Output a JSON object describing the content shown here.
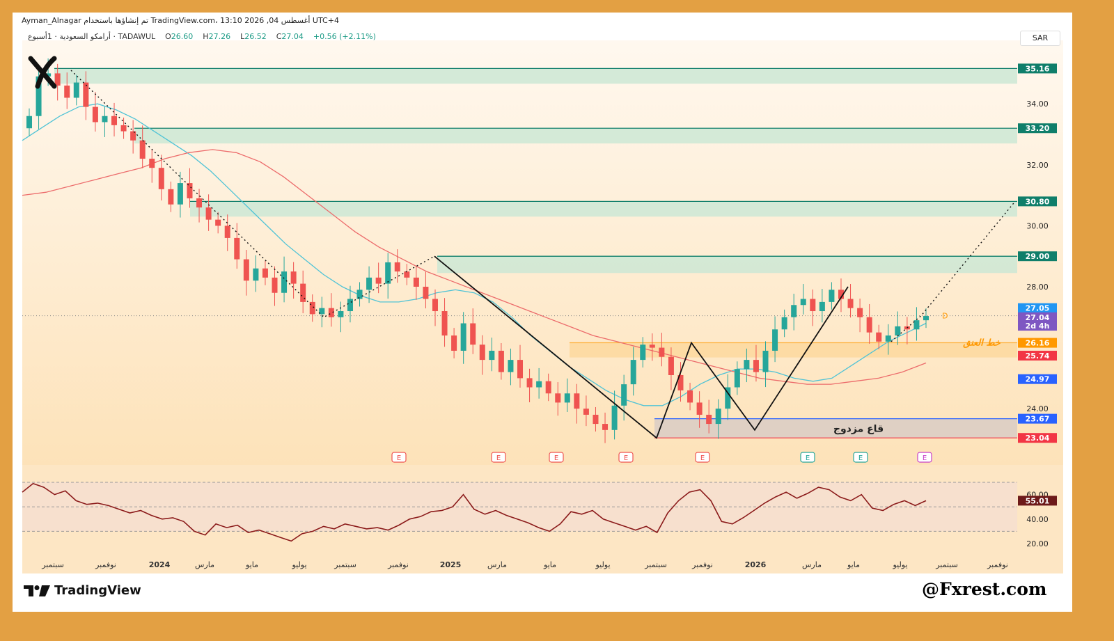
{
  "header": {
    "publish_line": "Ayman_Alnagar تم إنشاؤها باستخدام TradingView.com، 13:10 2026 ,04 أغسطس UTC+4",
    "symbol": "أرامكو السعودية · 1أسبوع · TADAWUL",
    "ohlc": {
      "open_label": "O",
      "open": "26.60",
      "high_label": "H",
      "high": "27.26",
      "low_label": "L",
      "low": "26.52",
      "close_label": "C",
      "close": "27.04",
      "change": "+0.56 (+2.11%)"
    },
    "currency": "SAR"
  },
  "branding": {
    "tv_logo_text": "TradingView",
    "watermark": "@Fxrest.com"
  },
  "colors": {
    "up": "#26a69a",
    "down": "#ef5350",
    "zone": "#cde7d5",
    "zone_line": "#0f7e6a",
    "sma_fast": "#4fc3d6",
    "sma_slow": "#ec6b6b",
    "rsi": "#8b1a1a",
    "bg_orange": "#fde9c8",
    "neck_label": "#ff9800",
    "blue_level": "#2962ff",
    "red_level": "#f23645"
  },
  "chart_data": [
    {
      "type": "candlestick",
      "timeframe": "1W",
      "x_labels": [
        "سبتمبر",
        "نوفمبر",
        "2024",
        "مارس",
        "مايو",
        "يوليو",
        "سبتمبر",
        "نوفمبر",
        "2025",
        "مارس",
        "مايو",
        "يوليو",
        "سبتمبر",
        "نوفمبر",
        "2026",
        "مارس",
        "مايو",
        "يوليو",
        "سبتمبر",
        "نوفمبر"
      ],
      "y_ticks": [
        "34.00",
        "32.00",
        "30.00",
        "28.00",
        "24.00"
      ],
      "ylim": [
        22.2,
        35.9
      ],
      "price_tags": [
        {
          "value": "35.16",
          "style": "zone"
        },
        {
          "value": "33.20",
          "style": "zone"
        },
        {
          "value": "30.80",
          "style": "zone"
        },
        {
          "value": "29.00",
          "style": "zone"
        },
        {
          "value": "27.05",
          "style": "cyan"
        },
        {
          "value": "27.04",
          "style": "purple"
        },
        {
          "value": "2d 4h",
          "style": "purple"
        },
        {
          "value": "26.16",
          "style": "orange"
        },
        {
          "value": "25.74",
          "style": "red"
        },
        {
          "value": "24.97",
          "style": "blue"
        },
        {
          "value": "23.67",
          "style": "blue"
        },
        {
          "value": "23.04",
          "style": "red"
        }
      ],
      "resistance_zones": [
        {
          "top": 35.16,
          "bottom": 34.66
        },
        {
          "top": 33.2,
          "bottom": 32.7
        },
        {
          "top": 30.8,
          "bottom": 30.3
        },
        {
          "top": 29.0,
          "bottom": 28.45
        },
        {
          "top": 26.16,
          "bottom": 25.68
        }
      ],
      "annotations": {
        "neckline_label": "خط العنق",
        "double_bottom_label": "قاع مزدوج",
        "pattern_point_label": "D",
        "earnings_marker": "E"
      },
      "double_bottom_box": {
        "top": 23.67,
        "bottom": 23.04
      },
      "earnings_count": 8,
      "candles_close_path": [
        33.6,
        34.9,
        35.0,
        34.6,
        34.2,
        34.7,
        33.9,
        33.4,
        33.6,
        33.3,
        33.1,
        32.8,
        32.2,
        31.9,
        31.2,
        30.7,
        31.4,
        30.9,
        30.6,
        30.2,
        30.0,
        29.6,
        28.9,
        28.2,
        28.6,
        28.3,
        27.8,
        28.5,
        28.1,
        27.5,
        27.1,
        27.3,
        27.0,
        27.2,
        27.6,
        27.9,
        28.3,
        28.1,
        28.8,
        28.5,
        28.3,
        28.0,
        27.6,
        27.2,
        26.4,
        25.9,
        26.8,
        26.1,
        25.6,
        25.9,
        25.2,
        25.6,
        25.0,
        24.7,
        24.9,
        24.5,
        24.2,
        24.5,
        24.0,
        23.8,
        23.5,
        23.3,
        24.1,
        24.8,
        25.6,
        26.1,
        26.0,
        25.7,
        25.1,
        24.6,
        24.2,
        23.8,
        23.5,
        24.0,
        24.7,
        25.3,
        25.6,
        25.2,
        25.9,
        26.6,
        27.0,
        27.4,
        27.6,
        27.2,
        27.5,
        27.9,
        27.6,
        27.3,
        27.0,
        26.5,
        26.2,
        26.4,
        26.7,
        26.6,
        26.9,
        27.04
      ],
      "sma_fast": [
        32.8,
        33.2,
        33.6,
        33.9,
        34.0,
        33.8,
        33.5,
        33.1,
        32.7,
        32.3,
        31.8,
        31.2,
        30.6,
        30.0,
        29.4,
        28.9,
        28.4,
        28.0,
        27.7,
        27.5,
        27.5,
        27.6,
        27.8,
        27.9,
        27.8,
        27.5,
        27.0,
        26.4,
        25.9,
        25.4,
        25.0,
        24.6,
        24.3,
        24.1,
        24.1,
        24.4,
        24.8,
        25.1,
        25.3,
        25.3,
        25.2,
        25.0,
        24.9,
        25.0,
        25.4,
        25.8,
        26.2,
        26.5,
        26.8
      ],
      "sma_slow": [
        31.0,
        31.1,
        31.3,
        31.5,
        31.7,
        31.9,
        32.2,
        32.4,
        32.5,
        32.4,
        32.1,
        31.6,
        31.0,
        30.4,
        29.8,
        29.3,
        28.9,
        28.5,
        28.2,
        27.9,
        27.6,
        27.3,
        27.0,
        26.7,
        26.4,
        26.2,
        26.0,
        25.8,
        25.6,
        25.4,
        25.2,
        25.0,
        24.9,
        24.8,
        24.8,
        24.9,
        25.0,
        25.2,
        25.5
      ]
    },
    {
      "type": "line",
      "name": "RSI",
      "y_ticks": [
        "60.00",
        "40.00",
        "20.00"
      ],
      "ylim": [
        16,
        74
      ],
      "last_value": "55.01",
      "values": [
        62,
        69,
        66,
        60,
        63,
        55,
        52,
        53,
        51,
        48,
        45,
        47,
        43,
        40,
        41,
        38,
        30,
        27,
        36,
        33,
        35,
        29,
        31,
        28,
        25,
        22,
        28,
        30,
        34,
        32,
        36,
        34,
        32,
        33,
        31,
        35,
        40,
        42,
        46,
        47,
        50,
        60,
        48,
        44,
        47,
        43,
        40,
        37,
        33,
        30,
        36,
        46,
        44,
        47,
        40,
        37,
        34,
        31,
        34,
        29,
        45,
        55,
        62,
        64,
        55,
        38,
        36,
        41,
        47,
        53,
        58,
        62,
        57,
        61,
        66,
        64,
        58,
        55,
        60,
        49,
        47,
        52,
        55,
        51,
        55.01
      ]
    }
  ]
}
